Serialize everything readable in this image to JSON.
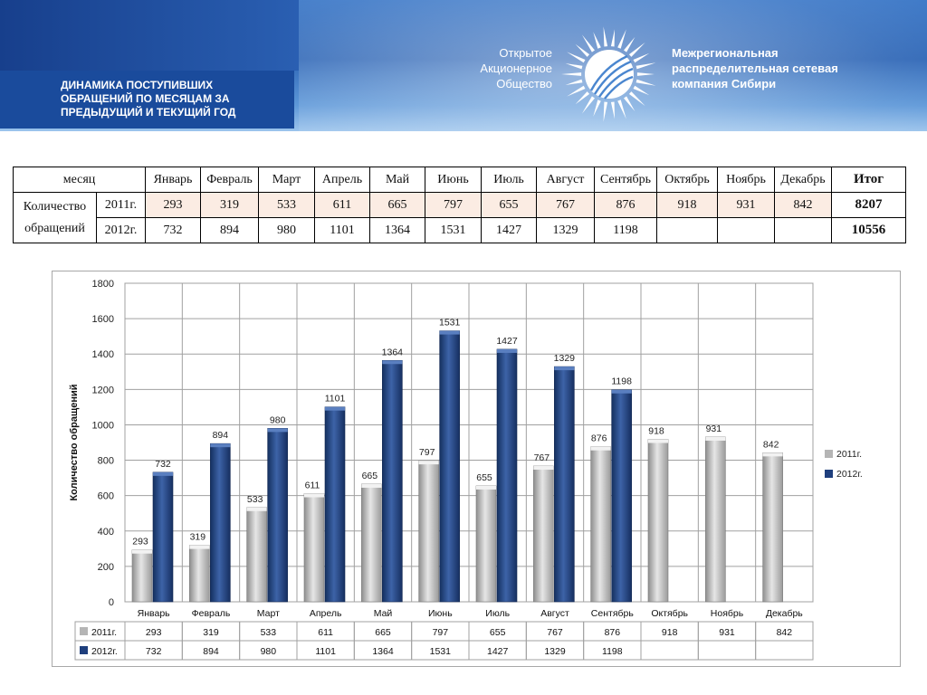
{
  "header": {
    "title": "ДИНАМИКА ПОСТУПИВШИХ\nОБРАЩЕНИЙ ПО МЕСЯЦАМ ЗА\nПРЕДЫДУЩИЙ И ТЕКУЩИЙ ГОД",
    "logo_left": "Открытое\nАкционерное\nОбщество",
    "logo_right": "Межрегиональная\nраспределительная сетевая\nкомпания Сибири",
    "logo_icon": "sun-logo-icon"
  },
  "summary_table": {
    "month_header": "месяц",
    "total_header": "Итог",
    "row_label": "Количество обращений",
    "months": [
      "Январь",
      "Февраль",
      "Март",
      "Апрель",
      "Май",
      "Июнь",
      "Июль",
      "Август",
      "Сентябрь",
      "Октябрь",
      "Ноябрь",
      "Декабрь"
    ],
    "rows": [
      {
        "year": "2011г.",
        "values": [
          "293",
          "319",
          "533",
          "611",
          "665",
          "797",
          "655",
          "767",
          "876",
          "918",
          "931",
          "842"
        ],
        "total": "8207"
      },
      {
        "year": "2012г.",
        "values": [
          "732",
          "894",
          "980",
          "1101",
          "1364",
          "1531",
          "1427",
          "1329",
          "1198",
          "",
          "",
          ""
        ],
        "total": "10556"
      }
    ]
  },
  "chart_data": {
    "type": "bar",
    "ylabel": "Количество обращений",
    "xlabel": "",
    "ylim": [
      0,
      1800
    ],
    "yticks": [
      0,
      200,
      400,
      600,
      800,
      1000,
      1200,
      1400,
      1600,
      1800
    ],
    "grid": true,
    "legend_position": "right",
    "categories": [
      "Январь",
      "Февраль",
      "Март",
      "Апрель",
      "Май",
      "Июнь",
      "Июль",
      "Август",
      "Сентябрь",
      "Октябрь",
      "Ноябрь",
      "Декабрь"
    ],
    "series": [
      {
        "name": "2011г.",
        "color": "#b5b5b5",
        "values": [
          293,
          319,
          533,
          611,
          665,
          797,
          655,
          767,
          876,
          918,
          931,
          842
        ]
      },
      {
        "name": "2012г.",
        "color": "#1f3f7d",
        "values": [
          732,
          894,
          980,
          1101,
          1364,
          1531,
          1427,
          1329,
          1198,
          null,
          null,
          null
        ]
      }
    ],
    "data_table": true
  }
}
